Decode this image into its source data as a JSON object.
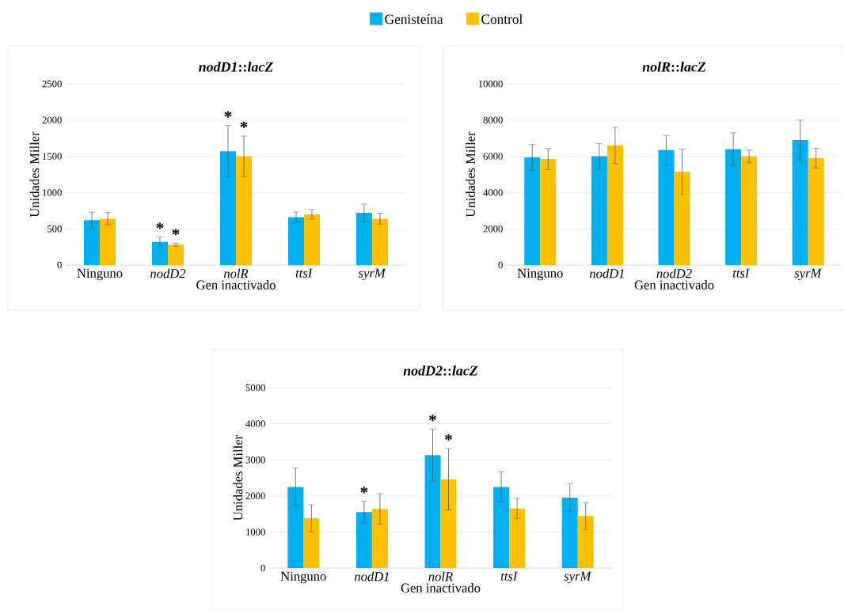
{
  "chart_data": [
    {
      "type": "bar",
      "title": "*nodD1*::*lacZ*",
      "xlabel": "Gen inactivado",
      "ylabel": "Unidades Miller",
      "categories": [
        "Ninguno",
        "*nodD2*",
        "*nolR*",
        "*ttsI*",
        "*syrM*"
      ],
      "series": [
        {
          "name": "Genisteína",
          "color": "#00b0f0",
          "values": [
            620,
            320,
            1570,
            660,
            720
          ],
          "errors": [
            110,
            65,
            355,
            70,
            120
          ]
        },
        {
          "name": "Control",
          "color": "#ffc000",
          "values": [
            640,
            280,
            1500,
            700,
            640
          ],
          "errors": [
            85,
            20,
            280,
            65,
            75
          ]
        }
      ],
      "ylim": [
        0,
        2500
      ],
      "yticks": [
        0,
        500,
        1000,
        1500,
        2000,
        2500
      ],
      "grid": "y",
      "legend": "top",
      "annotations": [
        "*",
        "*",
        "*",
        "*"
      ]
    },
    {
      "type": "bar",
      "title": "*nolR*::*lacZ*",
      "xlabel": "Gen inactivado",
      "ylabel": "Unidades Miller",
      "categories": [
        "Ninguno",
        "*nodD1*",
        "*nodD2*",
        "*ttsI*",
        "*syrM*"
      ],
      "series": [
        {
          "color": "#00b0f0",
          "values": [
            5950,
            6000,
            6350,
            6400,
            6900
          ],
          "errors": [
            700,
            700,
            800,
            900,
            1100
          ]
        },
        {
          "color": "#ffc000",
          "values": [
            5850,
            6600,
            5150,
            6000,
            5900
          ],
          "errors": [
            580,
            1000,
            1250,
            360,
            540
          ]
        }
      ],
      "ylim": [
        0,
        10000
      ],
      "yticks": [
        0,
        2000,
        4000,
        6000,
        8000,
        10000
      ],
      "grid": "y"
    },
    {
      "type": "bar",
      "title": "*nodD2*::*lacZ*",
      "xlabel": "Gen inactivado",
      "ylabel": "Unidades Miller",
      "categories": [
        "Ninguno",
        "*nodD1*",
        "*nolR*",
        "*ttsI*",
        "*syrM*"
      ],
      "series": [
        {
          "color": "#00b0f0",
          "values": [
            2250,
            1550,
            3130,
            2250,
            1950
          ],
          "errors": [
            520,
            300,
            720,
            415,
            385
          ]
        },
        {
          "color": "#ffc000",
          "values": [
            1380,
            1640,
            2460,
            1650,
            1440
          ],
          "errors": [
            370,
            420,
            850,
            280,
            370
          ]
        }
      ],
      "ylim": [
        0,
        5000
      ],
      "yticks": [
        0,
        1000,
        2000,
        3000,
        4000,
        5000
      ],
      "grid": "y",
      "annotations": [
        "*",
        "*",
        "*"
      ]
    }
  ]
}
